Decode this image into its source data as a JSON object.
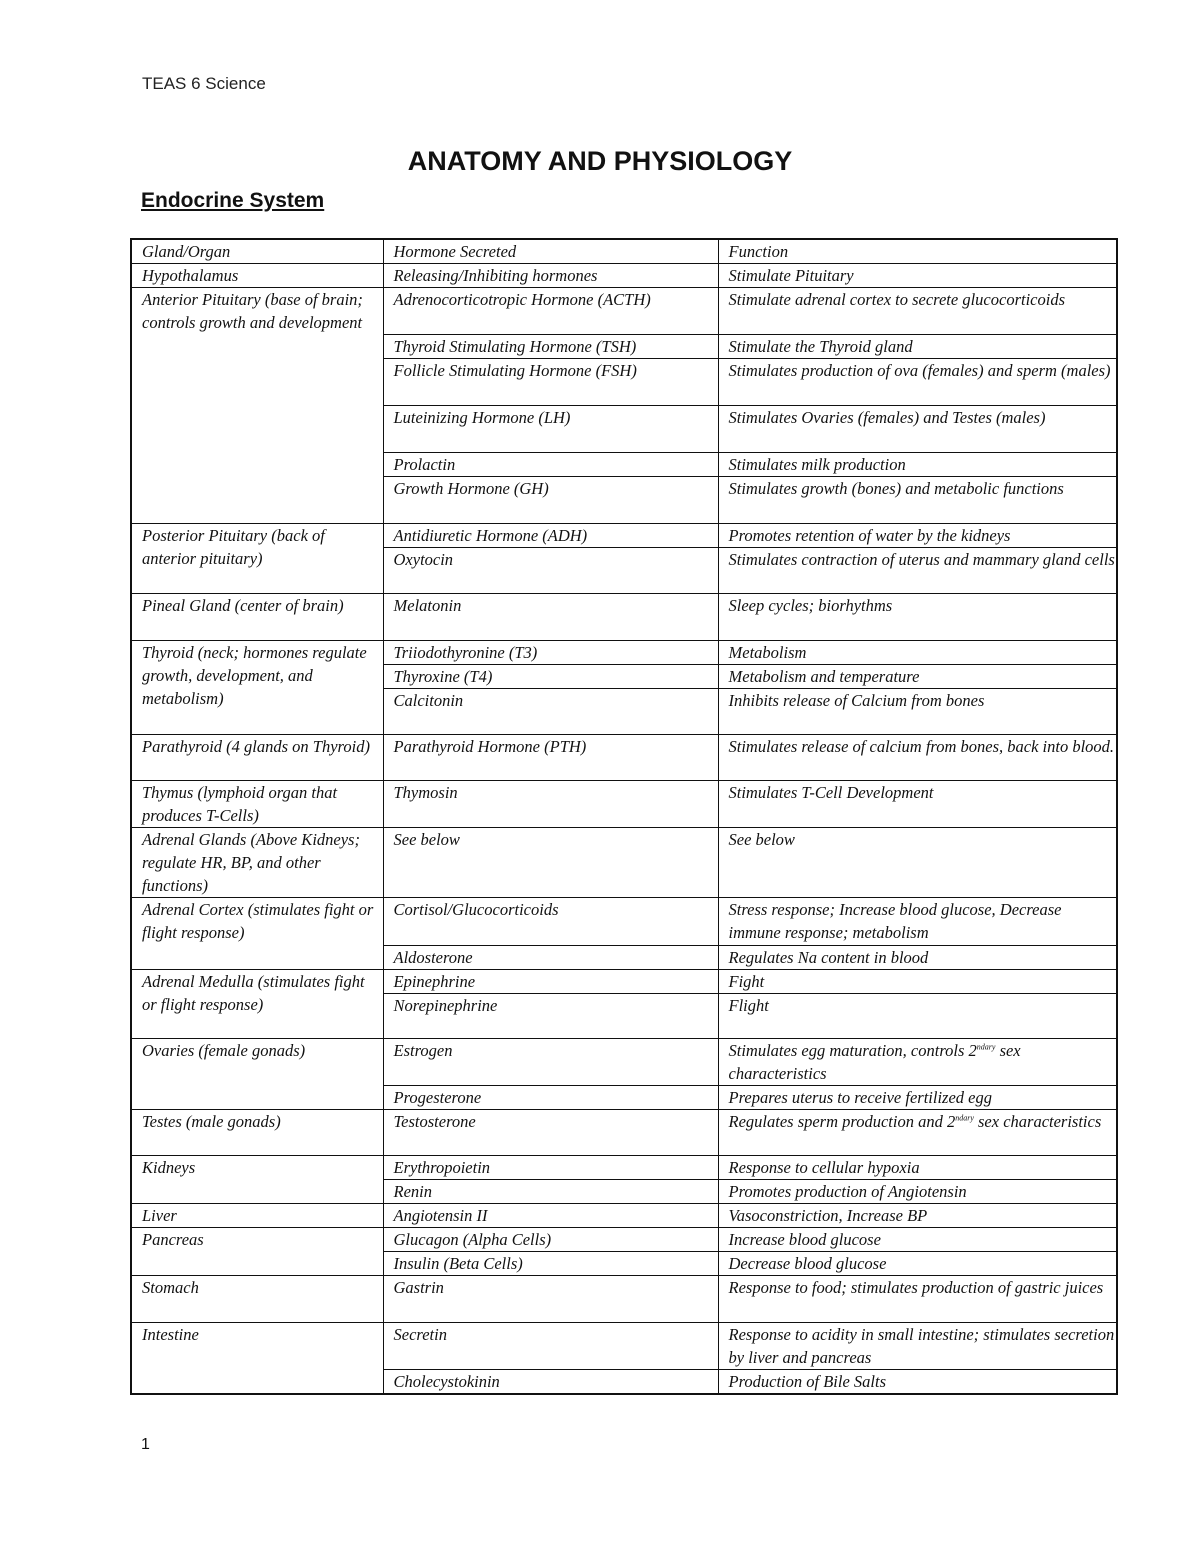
{
  "header": {
    "text": "TEAS 6 Science"
  },
  "title": "ANATOMY AND PHYSIOLOGY",
  "section": "Endocrine System",
  "table": {
    "columns": [
      "Gland/Organ",
      "Hormone Secreted",
      "Function"
    ],
    "groups": [
      {
        "organ": "Hypothalamus",
        "rows": [
          {
            "hormone": "Releasing/Inhibiting hormones",
            "function": "Stimulate Pituitary"
          }
        ]
      },
      {
        "organ": "Anterior Pituitary (base of brain; controls growth and development",
        "rows": [
          {
            "hormone": "Adrenocorticotropic Hormone (ACTH)",
            "function": "Stimulate adrenal cortex to secrete glucocorticoids"
          },
          {
            "hormone": "Thyroid Stimulating Hormone (TSH)",
            "function": "Stimulate the Thyroid gland"
          },
          {
            "hormone": "Follicle Stimulating Hormone (FSH)",
            "function": "Stimulates production of ova (females) and sperm (males)"
          },
          {
            "hormone": "Luteinizing Hormone (LH)",
            "function": "Stimulates Ovaries (females) and Testes (males)"
          },
          {
            "hormone": "Prolactin",
            "function": "Stimulates milk production"
          },
          {
            "hormone": "Growth Hormone (GH)",
            "function": "Stimulates growth (bones) and metabolic functions"
          }
        ]
      },
      {
        "organ": "Posterior Pituitary (back of anterior pituitary)",
        "rows": [
          {
            "hormone": "Antidiuretic Hormone (ADH)",
            "function": "Promotes retention of water by the kidneys"
          },
          {
            "hormone": "Oxytocin",
            "function": "Stimulates contraction of uterus and mammary gland cells"
          }
        ]
      },
      {
        "organ": "Pineal Gland (center of brain)",
        "rows": [
          {
            "hormone": "Melatonin",
            "function": "Sleep cycles; biorhythms"
          }
        ]
      },
      {
        "organ": "Thyroid (neck; hormones regulate growth, development, and metabolism)",
        "rows": [
          {
            "hormone": "Triiodothyronine (T3)",
            "function": "Metabolism"
          },
          {
            "hormone": "Thyroxine (T4)",
            "function": "Metabolism and temperature"
          },
          {
            "hormone": "Calcitonin",
            "function": "Inhibits release of Calcium from bones"
          }
        ]
      },
      {
        "organ": "Parathyroid (4 glands on Thyroid)",
        "rows": [
          {
            "hormone": "Parathyroid Hormone (PTH)",
            "function": "Stimulates release of calcium from bones, back into blood."
          }
        ]
      },
      {
        "organ": "Thymus (lymphoid organ that produces T-Cells)",
        "rows": [
          {
            "hormone": "Thymosin",
            "function": "Stimulates T-Cell Development"
          }
        ]
      },
      {
        "organ": "Adrenal Glands (Above Kidneys; regulate HR, BP, and other functions)",
        "rows": [
          {
            "hormone": "See below",
            "function": "See below"
          }
        ]
      },
      {
        "organ": "Adrenal Cortex (stimulates fight or flight response)",
        "rows": [
          {
            "hormone": "Cortisol/Glucocorticoids",
            "function": "Stress response; Increase blood glucose, Decrease immune response; metabolism"
          },
          {
            "hormone": "Aldosterone",
            "function": "Regulates Na content in blood"
          }
        ]
      },
      {
        "organ": "Adrenal Medulla (stimulates fight or flight response)",
        "rows": [
          {
            "hormone": "Epinephrine",
            "function": "Fight"
          },
          {
            "hormone": "Norepinephrine",
            "function": "Flight"
          }
        ]
      },
      {
        "organ": "Ovaries (female gonads)",
        "rows": [
          {
            "hormone": "Estrogen",
            "function": "Stimulates egg maturation, controls 2ndary sex characteristics"
          },
          {
            "hormone": "Progesterone",
            "function": "Prepares uterus to receive fertilized egg"
          }
        ]
      },
      {
        "organ": "Testes (male gonads)",
        "rows": [
          {
            "hormone": "Testosterone",
            "function": "Regulates sperm production and 2ndary sex characteristics"
          }
        ]
      },
      {
        "organ": "Kidneys",
        "rows": [
          {
            "hormone": "Erythropoietin",
            "function": "Response to cellular hypoxia"
          },
          {
            "hormone": "Renin",
            "function": "Promotes production of Angiotensin"
          }
        ]
      },
      {
        "organ": "Liver",
        "rows": [
          {
            "hormone": "Angiotensin II",
            "function": "Vasoconstriction, Increase BP"
          }
        ]
      },
      {
        "organ": "Pancreas",
        "rows": [
          {
            "hormone": "Glucagon (Alpha Cells)",
            "function": "Increase blood glucose"
          },
          {
            "hormone": "Insulin (Beta Cells)",
            "function": "Decrease blood glucose"
          }
        ]
      },
      {
        "organ": "Stomach",
        "rows": [
          {
            "hormone": "Gastrin",
            "function": "Response to food; stimulates production of gastric juices"
          }
        ]
      },
      {
        "organ": "Intestine",
        "rows": [
          {
            "hormone": "Secretin",
            "function": "Response to acidity in small intestine; stimulates secretion by liver and pancreas"
          },
          {
            "hormone": "Cholecystokinin",
            "function": "Production of Bile Salts"
          }
        ]
      }
    ]
  },
  "footer": {
    "page_number": "1"
  }
}
